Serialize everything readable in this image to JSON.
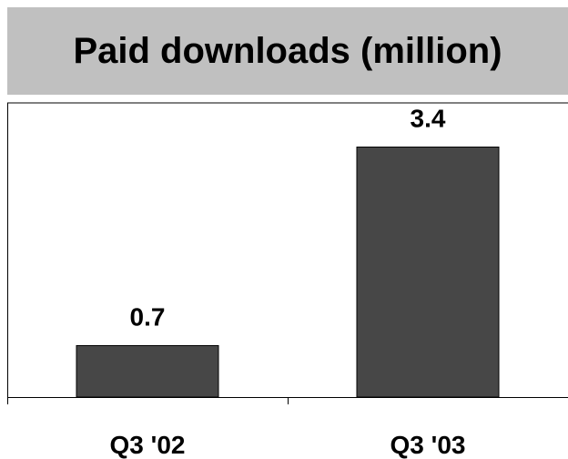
{
  "chart_data": {
    "type": "bar",
    "title": "Paid downloads (million)",
    "categories": [
      "Q3 '02",
      "Q3 '03"
    ],
    "values": [
      0.7,
      3.4
    ],
    "data_labels": [
      "0.7",
      "3.4"
    ],
    "xlabel": "",
    "ylabel": "",
    "ylim": [
      0,
      4.0
    ],
    "grid": false,
    "legend": "none",
    "bar_color": "#474747",
    "title_background": "#c0c0c0"
  }
}
